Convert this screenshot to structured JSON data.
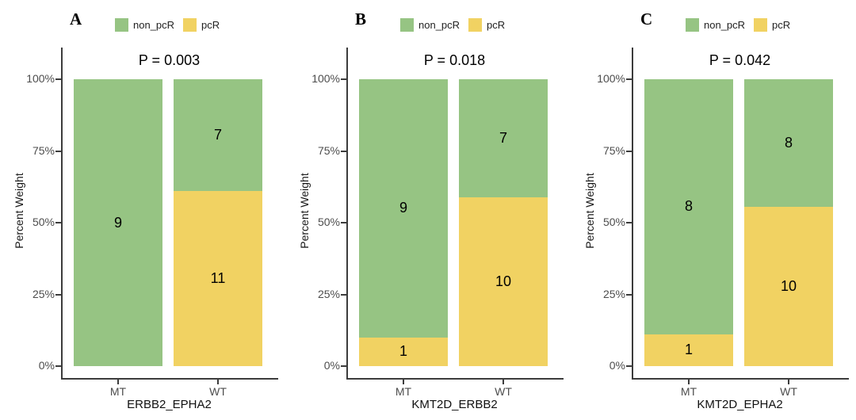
{
  "figure": {
    "background": "#ffffff",
    "axis_color": "#3c3c3c",
    "tick_text_color": "#4d4d4d",
    "palette": {
      "non_pcR": "#96C483",
      "pcR": "#F1D262"
    }
  },
  "chart_data": [
    {
      "type": "bar",
      "subtype": "stacked-percent",
      "panel_label": "A",
      "title": "P = 0.003",
      "xlabel": "ERBB2_EPHA2",
      "ylabel": "Percent Weight",
      "categories": [
        "MT",
        "WT"
      ],
      "series": [
        {
          "name": "non_pcR",
          "color": "#96C483",
          "values": [
            9,
            7
          ]
        },
        {
          "name": "pcR",
          "color": "#F1D262",
          "values": [
            0,
            11
          ]
        }
      ],
      "yticks": [
        "0%",
        "25%",
        "50%",
        "75%",
        "100%"
      ],
      "ylim": [
        0,
        100
      ],
      "legend_position": "top",
      "grid": false
    },
    {
      "type": "bar",
      "subtype": "stacked-percent",
      "panel_label": "B",
      "title": "P = 0.018",
      "xlabel": "KMT2D_ERBB2",
      "ylabel": "Percent Weight",
      "categories": [
        "MT",
        "WT"
      ],
      "series": [
        {
          "name": "non_pcR",
          "color": "#96C483",
          "values": [
            9,
            7
          ]
        },
        {
          "name": "pcR",
          "color": "#F1D262",
          "values": [
            1,
            10
          ]
        }
      ],
      "yticks": [
        "0%",
        "25%",
        "50%",
        "75%",
        "100%"
      ],
      "ylim": [
        0,
        100
      ],
      "legend_position": "top",
      "grid": false
    },
    {
      "type": "bar",
      "subtype": "stacked-percent",
      "panel_label": "C",
      "title": "P = 0.042",
      "xlabel": "KMT2D_EPHA2",
      "ylabel": "Percent Weight",
      "categories": [
        "MT",
        "WT"
      ],
      "series": [
        {
          "name": "non_pcR",
          "color": "#96C483",
          "values": [
            8,
            8
          ]
        },
        {
          "name": "pcR",
          "color": "#F1D262",
          "values": [
            1,
            10
          ]
        }
      ],
      "yticks": [
        "0%",
        "25%",
        "50%",
        "75%",
        "100%"
      ],
      "ylim": [
        0,
        100
      ],
      "legend_position": "top",
      "grid": false
    }
  ]
}
